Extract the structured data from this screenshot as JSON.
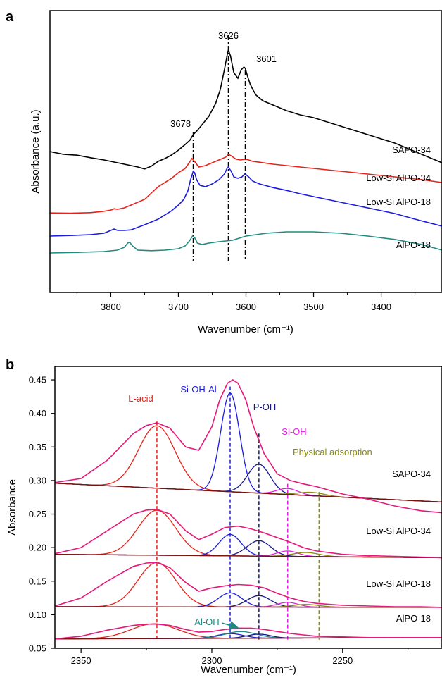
{
  "chart_data": [
    {
      "panel_label": "a",
      "type": "line",
      "xlabel": "Wavenumber (cm⁻¹)",
      "ylabel": "Absorbance (a.u.)",
      "x_reversed": true,
      "xlim": [
        3890,
        3310
      ],
      "ylim": [
        0,
        1
      ],
      "x_ticks": [
        3800,
        3700,
        3600,
        3500,
        3400
      ],
      "show_y_ticks": false,
      "grid": false,
      "series": [
        {
          "name": "SAPO-34",
          "color": "#000000",
          "x": [
            3890,
            3870,
            3850,
            3830,
            3810,
            3800,
            3790,
            3780,
            3770,
            3760,
            3750,
            3740,
            3730,
            3720,
            3710,
            3700,
            3690,
            3683,
            3678,
            3672,
            3665,
            3655,
            3645,
            3638,
            3632,
            3628,
            3626,
            3623,
            3618,
            3612,
            3607,
            3603,
            3601,
            3598,
            3594,
            3590,
            3585,
            3580,
            3575,
            3570,
            3560,
            3550,
            3540,
            3520,
            3500,
            3480,
            3460,
            3440,
            3420,
            3400,
            3380,
            3360,
            3340,
            3310
          ],
          "y": [
            0.5,
            0.49,
            0.487,
            0.478,
            0.47,
            0.465,
            0.46,
            0.455,
            0.45,
            0.445,
            0.438,
            0.448,
            0.465,
            0.475,
            0.488,
            0.505,
            0.525,
            0.54,
            0.56,
            0.575,
            0.595,
            0.625,
            0.67,
            0.72,
            0.79,
            0.84,
            0.86,
            0.84,
            0.78,
            0.76,
            0.79,
            0.8,
            0.795,
            0.77,
            0.74,
            0.72,
            0.7,
            0.69,
            0.68,
            0.675,
            0.665,
            0.655,
            0.645,
            0.63,
            0.62,
            0.605,
            0.59,
            0.575,
            0.56,
            0.545,
            0.53,
            0.51,
            0.49,
            0.46
          ]
        },
        {
          "name": "Low-Si AlPO-34",
          "color": "#e8221b",
          "x": [
            3890,
            3860,
            3830,
            3810,
            3800,
            3795,
            3790,
            3780,
            3770,
            3750,
            3730,
            3710,
            3700,
            3690,
            3684,
            3680,
            3676,
            3670,
            3660,
            3650,
            3640,
            3630,
            3626,
            3622,
            3615,
            3608,
            3603,
            3600,
            3596,
            3590,
            3580,
            3560,
            3540,
            3500,
            3460,
            3420,
            3380,
            3340,
            3310
          ],
          "y": [
            0.282,
            0.281,
            0.283,
            0.288,
            0.292,
            0.297,
            0.295,
            0.3,
            0.31,
            0.33,
            0.375,
            0.405,
            0.425,
            0.44,
            0.46,
            0.475,
            0.465,
            0.445,
            0.45,
            0.46,
            0.47,
            0.48,
            0.49,
            0.485,
            0.473,
            0.47,
            0.472,
            0.473,
            0.47,
            0.465,
            0.462,
            0.455,
            0.45,
            0.44,
            0.43,
            0.42,
            0.41,
            0.4,
            0.39
          ]
        },
        {
          "name": "Low-Si AlPO-18",
          "color": "#1c1ce0",
          "x": [
            3890,
            3860,
            3830,
            3810,
            3800,
            3795,
            3790,
            3780,
            3770,
            3750,
            3730,
            3710,
            3700,
            3692,
            3686,
            3682,
            3678,
            3676,
            3673,
            3668,
            3660,
            3650,
            3640,
            3632,
            3628,
            3626,
            3622,
            3618,
            3612,
            3606,
            3602,
            3600,
            3596,
            3590,
            3580,
            3560,
            3540,
            3520,
            3500,
            3470,
            3440,
            3410,
            3380,
            3350,
            3310
          ],
          "y": [
            0.2,
            0.202,
            0.205,
            0.21,
            0.22,
            0.225,
            0.22,
            0.22,
            0.222,
            0.24,
            0.26,
            0.29,
            0.31,
            0.33,
            0.36,
            0.4,
            0.43,
            0.425,
            0.4,
            0.38,
            0.375,
            0.385,
            0.4,
            0.42,
            0.44,
            0.445,
            0.43,
            0.41,
            0.405,
            0.41,
            0.42,
            0.418,
            0.41,
            0.395,
            0.385,
            0.372,
            0.362,
            0.35,
            0.34,
            0.325,
            0.31,
            0.295,
            0.28,
            0.26,
            0.235
          ]
        },
        {
          "name": "AlPO-18",
          "color": "#1f8a80",
          "x": [
            3890,
            3850,
            3810,
            3790,
            3780,
            3775,
            3772,
            3768,
            3760,
            3740,
            3720,
            3700,
            3690,
            3683,
            3679,
            3676,
            3672,
            3665,
            3655,
            3640,
            3620,
            3600,
            3570,
            3540,
            3500,
            3460,
            3420,
            3380,
            3340,
            3310
          ],
          "y": [
            0.14,
            0.142,
            0.145,
            0.15,
            0.16,
            0.175,
            0.178,
            0.165,
            0.15,
            0.148,
            0.15,
            0.155,
            0.165,
            0.185,
            0.2,
            0.195,
            0.175,
            0.17,
            0.175,
            0.18,
            0.185,
            0.2,
            0.21,
            0.215,
            0.215,
            0.21,
            0.2,
            0.188,
            0.17,
            0.15
          ]
        }
      ],
      "annotations": [
        {
          "text": "3678",
          "x": 3678
        },
        {
          "text": "3626",
          "x": 3626
        },
        {
          "text": "3601",
          "x": 3601
        }
      ],
      "series_labels": [
        "SAPO-34",
        "Low-Si AlPO-34",
        "Low-Si AlPO-18",
        "AlPO-18"
      ]
    },
    {
      "panel_label": "b",
      "type": "line",
      "xlabel": "Wavenumber (cm⁻¹)",
      "ylabel": "Absorbance",
      "x_reversed": true,
      "xlim": [
        2360,
        2212
      ],
      "ylim": [
        0.05,
        0.47
      ],
      "x_ticks": [
        2350,
        2300,
        2250
      ],
      "y_ticks": [
        0.05,
        0.1,
        0.15,
        0.2,
        0.25,
        0.3,
        0.35,
        0.4,
        0.45
      ],
      "grid": false,
      "sample_labels": [
        "SAPO-34",
        "Low-Si AlPO-34",
        "Low-Si AlPO-18",
        "AlPO-18"
      ],
      "band_labels": [
        {
          "text": "L-acid",
          "color": "#e8221b",
          "x": 2321
        },
        {
          "text": "Si-OH-Al",
          "color": "#1c1ce0",
          "x": 2293
        },
        {
          "text": "P-OH",
          "color": "#17178a",
          "x": 2282
        },
        {
          "text": "Si-OH",
          "color": "#e51ee5",
          "x": 2271
        },
        {
          "text": "Physical adsorption",
          "color": "#8a8a10",
          "x": 2259
        },
        {
          "text": "Al-OH",
          "color": "#1f8a80",
          "x": 2290
        }
      ],
      "envelope_color": "#e8177a",
      "baseline_color": "#7a1010",
      "samples": [
        {
          "name": "SAPO-34",
          "baseline": {
            "x": [
              2360,
              2212
            ],
            "y": [
              0.296,
              0.268
            ]
          },
          "envelope": {
            "x": [
              2360,
              2350,
              2340,
              2330,
              2325,
              2321,
              2316,
              2310,
              2305,
              2300,
              2297,
              2294,
              2292,
              2290,
              2287,
              2284,
              2280,
              2275,
              2270,
              2265,
              2260,
              2250,
              2240,
              2230,
              2220,
              2212
            ],
            "y": [
              0.297,
              0.303,
              0.33,
              0.37,
              0.382,
              0.386,
              0.378,
              0.35,
              0.345,
              0.38,
              0.42,
              0.445,
              0.45,
              0.445,
              0.42,
              0.38,
              0.34,
              0.31,
              0.3,
              0.295,
              0.291,
              0.28,
              0.272,
              0.262,
              0.255,
              0.252
            ]
          },
          "components": [
            {
              "band": "L-acid",
              "color": "#e8221b",
              "center": 2321,
              "height": 0.093,
              "width": 7.0
            },
            {
              "band": "Si-OH-Al",
              "color": "#1c1ce0",
              "center": 2293,
              "height": 0.147,
              "width": 3.6
            },
            {
              "band": "P-OH",
              "color": "#17178a",
              "center": 2282,
              "height": 0.043,
              "width": 4.3
            },
            {
              "band": "Si-OH",
              "color": "#e51ee5",
              "center": 2271,
              "height": 0.009,
              "width": 4.0
            },
            {
              "band": "Physical adsorption",
              "color": "#8a8a10",
              "center": 2262,
              "height": 0.005,
              "width": 5.0
            }
          ]
        },
        {
          "name": "Low-Si AlPO-34",
          "baseline": {
            "x": [
              2360,
              2212
            ],
            "y": [
              0.19,
              0.185
            ]
          },
          "envelope": {
            "x": [
              2360,
              2350,
              2340,
              2330,
              2325,
              2321,
              2316,
              2310,
              2305,
              2300,
              2295,
              2290,
              2285,
              2280,
              2275,
              2270,
              2265,
              2260,
              2250,
              2240,
              2230,
              2220,
              2212
            ],
            "y": [
              0.191,
              0.2,
              0.225,
              0.25,
              0.256,
              0.257,
              0.25,
              0.225,
              0.212,
              0.22,
              0.23,
              0.232,
              0.228,
              0.222,
              0.215,
              0.208,
              0.2,
              0.195,
              0.19,
              0.188,
              0.187,
              0.186,
              0.185
            ]
          },
          "components": [
            {
              "band": "L-acid",
              "color": "#e8221b",
              "center": 2321,
              "height": 0.067,
              "width": 7.2
            },
            {
              "band": "Si-OH-Al",
              "color": "#1c1ce0",
              "center": 2293,
              "height": 0.032,
              "width": 4.2
            },
            {
              "band": "P-OH",
              "color": "#17178a",
              "center": 2282,
              "height": 0.023,
              "width": 4.5
            },
            {
              "band": "Si-OH",
              "color": "#e51ee5",
              "center": 2271,
              "height": 0.008,
              "width": 4.0
            },
            {
              "band": "Physical adsorption",
              "color": "#8a8a10",
              "center": 2264,
              "height": 0.006,
              "width": 5.0
            }
          ]
        },
        {
          "name": "Low-Si AlPO-18",
          "baseline": {
            "x": [
              2360,
              2212
            ],
            "y": [
              0.112,
              0.111
            ]
          },
          "envelope": {
            "x": [
              2360,
              2350,
              2340,
              2330,
              2325,
              2321,
              2316,
              2310,
              2305,
              2300,
              2295,
              2290,
              2285,
              2280,
              2275,
              2270,
              2265,
              2260,
              2250,
              2240,
              2230,
              2220,
              2212
            ],
            "y": [
              0.113,
              0.125,
              0.15,
              0.172,
              0.177,
              0.178,
              0.17,
              0.148,
              0.135,
              0.14,
              0.143,
              0.145,
              0.144,
              0.14,
              0.132,
              0.125,
              0.12,
              0.117,
              0.114,
              0.113,
              0.112,
              0.112,
              0.111
            ]
          },
          "components": [
            {
              "band": "L-acid",
              "color": "#e8221b",
              "center": 2321,
              "height": 0.066,
              "width": 7.2
            },
            {
              "band": "Si-OH-Al",
              "color": "#1c1ce0",
              "center": 2293,
              "height": 0.021,
              "width": 4.5
            },
            {
              "band": "P-OH",
              "color": "#17178a",
              "center": 2282,
              "height": 0.017,
              "width": 4.5
            },
            {
              "band": "Si-OH",
              "color": "#e51ee5",
              "center": 2271,
              "height": 0.007,
              "width": 4.0
            },
            {
              "band": "Physical adsorption",
              "color": "#8a8a10",
              "center": 2264,
              "height": 0.004,
              "width": 5.0
            }
          ]
        },
        {
          "name": "AlPO-18",
          "baseline": {
            "x": [
              2360,
              2212
            ],
            "y": [
              0.064,
              0.066
            ]
          },
          "envelope": {
            "x": [
              2360,
              2350,
              2340,
              2330,
              2325,
              2321,
              2316,
              2310,
              2305,
              2300,
              2295,
              2290,
              2285,
              2280,
              2275,
              2270,
              2265,
              2260,
              2250,
              2240,
              2230,
              2220,
              2212
            ],
            "y": [
              0.064,
              0.068,
              0.077,
              0.084,
              0.086,
              0.086,
              0.084,
              0.078,
              0.074,
              0.075,
              0.078,
              0.08,
              0.08,
              0.078,
              0.075,
              0.072,
              0.07,
              0.068,
              0.067,
              0.066,
              0.066,
              0.066,
              0.066
            ]
          },
          "components": [
            {
              "band": "L-acid",
              "color": "#e8221b",
              "center": 2322,
              "height": 0.022,
              "width": 9.0
            },
            {
              "band": "Si-OH-Al",
              "color": "#1c1ce0",
              "center": 2293,
              "height": 0.007,
              "width": 5.0
            },
            {
              "band": "Al-OH",
              "color": "#1f8a80",
              "center": 2289,
              "height": 0.01,
              "width": 6.0
            },
            {
              "band": "P-OH",
              "color": "#17178a",
              "center": 2282,
              "height": 0.006,
              "width": 4.5
            }
          ]
        }
      ]
    }
  ]
}
